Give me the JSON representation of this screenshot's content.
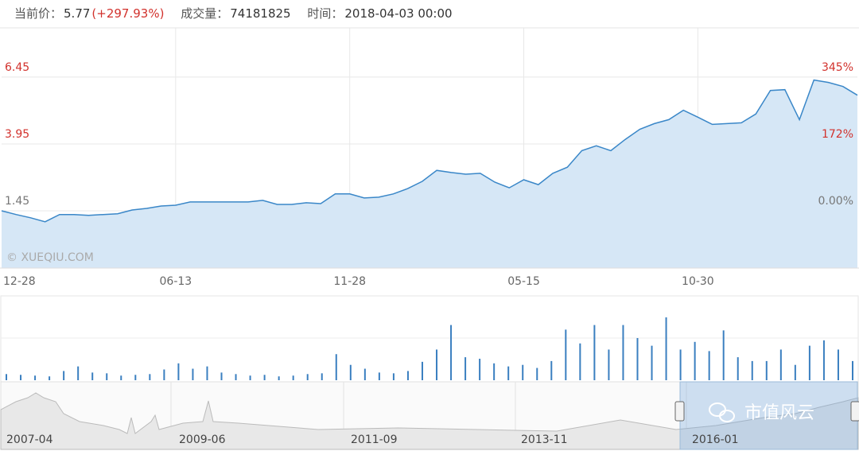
{
  "header": {
    "price_label": "当前价：",
    "price": "5.77",
    "change": "(+297.93%)",
    "volume_label": "成交量：",
    "volume": "74181825",
    "time_label": "时间：",
    "time": "2018-04-03 00:00"
  },
  "chart_data": [
    {
      "type": "line",
      "color": "#3a87c8",
      "area_color": "#d6e7f6",
      "values": [
        1.45,
        1.31,
        1.19,
        1.04,
        1.31,
        1.31,
        1.28,
        1.31,
        1.34,
        1.48,
        1.54,
        1.63,
        1.66,
        1.78,
        1.78,
        1.78,
        1.78,
        1.78,
        1.84,
        1.69,
        1.69,
        1.75,
        1.72,
        2.08,
        2.08,
        1.93,
        1.96,
        2.08,
        2.28,
        2.55,
        2.96,
        2.88,
        2.82,
        2.85,
        2.52,
        2.31,
        2.61,
        2.43,
        2.85,
        3.08,
        3.7,
        3.88,
        3.7,
        4.12,
        4.5,
        4.71,
        4.86,
        5.21,
        4.95,
        4.68,
        4.71,
        4.74,
        5.07,
        5.95,
        5.98,
        4.86,
        6.34,
        6.25,
        6.1,
        5.77
      ],
      "xlim": [
        0,
        59
      ],
      "xticks": [
        {
          "value": 0,
          "label": "12-28"
        },
        {
          "value": 12,
          "label": "06-13"
        },
        {
          "value": 24,
          "label": "11-28"
        },
        {
          "value": 36,
          "label": "05-15"
        },
        {
          "value": 48,
          "label": "10-30"
        }
      ],
      "ylim": [
        -0.69,
        8.29
      ],
      "yticks": [
        1.45,
        3.95,
        6.45
      ],
      "y2lim": [
        -147.6,
        471.7
      ],
      "y2ticks": [
        {
          "value": 0,
          "label": "0.00%"
        },
        {
          "value": 172,
          "label": "172%"
        },
        {
          "value": 345,
          "label": "345%"
        }
      ],
      "grid": true,
      "watermark": "© XUEQIU.COM"
    },
    {
      "type": "bar",
      "color": "#3a7fc0",
      "ylim": [
        0,
        110
      ],
      "values": [
        8,
        7,
        6,
        5,
        12,
        18,
        10,
        9,
        6,
        7,
        8,
        14,
        22,
        15,
        18,
        10,
        8,
        6,
        7,
        5,
        6,
        8,
        9,
        34,
        20,
        15,
        10,
        9,
        12,
        24,
        40,
        72,
        30,
        28,
        22,
        18,
        20,
        16,
        25,
        66,
        48,
        72,
        40,
        72,
        55,
        45,
        82,
        40,
        50,
        38,
        65,
        30,
        25,
        25,
        40,
        20,
        45,
        52,
        40,
        25
      ]
    }
  ],
  "navigator": {
    "labels": [
      "2007-04",
      "2009-06",
      "2011-09",
      "2013-11",
      "2016-01"
    ]
  },
  "brand": "市值风云"
}
